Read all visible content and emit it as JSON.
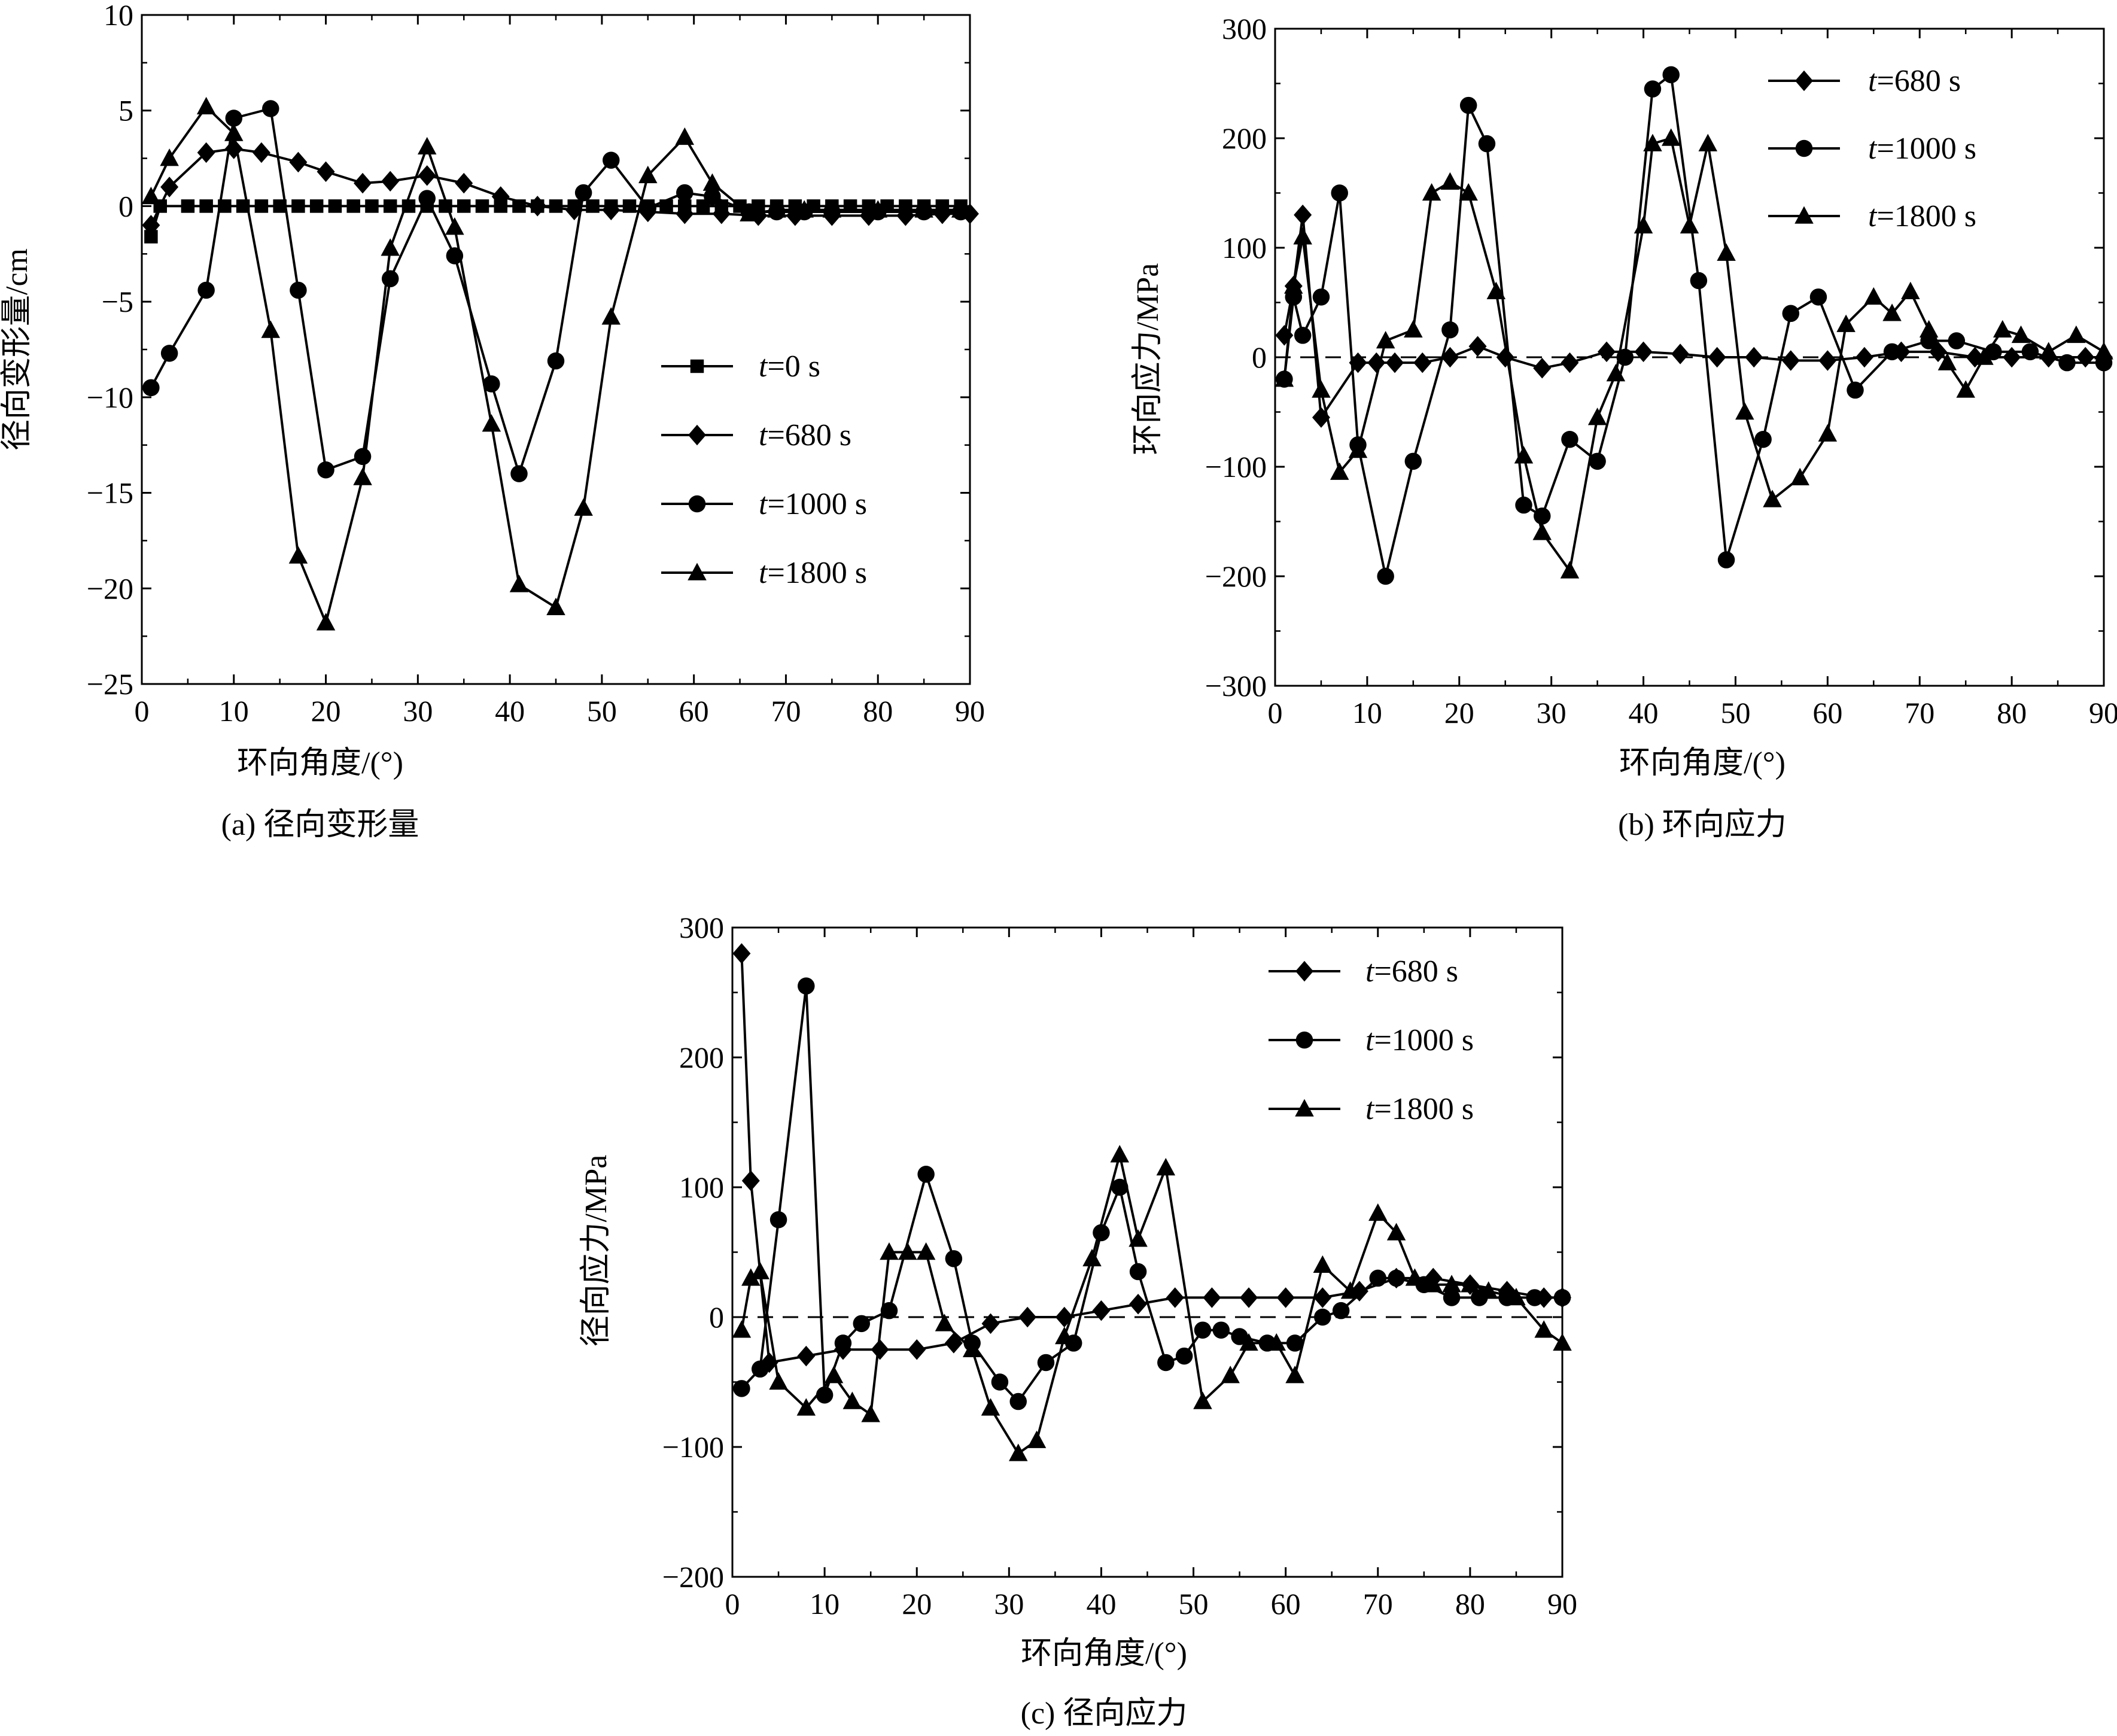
{
  "panels": [
    {
      "title": "环向角度/(°)",
      "caption": "(a) 径向变形量",
      "chart_data": {
        "type": "line",
        "title": "",
        "xlabel": "环向角度/(°)",
        "ylabel": "径向变形量/cm",
        "xlim": [
          0,
          90
        ],
        "ylim": [
          -25,
          10
        ],
        "xticks": [
          0,
          10,
          20,
          30,
          40,
          50,
          60,
          70,
          80,
          90
        ],
        "yticks": [
          10,
          5,
          0,
          -5,
          -10,
          -15,
          -20,
          -25
        ],
        "ytick_labels": [
          "10",
          "5",
          "0",
          "−5",
          "−10",
          "−15",
          "−20",
          "−25"
        ],
        "legend_position": "center-right",
        "series": [
          {
            "name_prefix": "t",
            "name_suffix": "=0 s",
            "marker": "square",
            "x": [
              1,
              2,
              5,
              7,
              9,
              11,
              13,
              15,
              17,
              19,
              21,
              23,
              25,
              27,
              29,
              31,
              33,
              35,
              37,
              39,
              41,
              43,
              45,
              47,
              49,
              51,
              53,
              55,
              57,
              59,
              61,
              63,
              65,
              67,
              69,
              71,
              73,
              75,
              77,
              79,
              81,
              83,
              85,
              87,
              89
            ],
            "y": [
              -1.6,
              0,
              0,
              0,
              0,
              0,
              0,
              0,
              0,
              0,
              0,
              0,
              0,
              0,
              0,
              0,
              0,
              0,
              0,
              0,
              0,
              0,
              0,
              0,
              0,
              0,
              0,
              0,
              0,
              0,
              0,
              0,
              0,
              0,
              0,
              0,
              0,
              0,
              0,
              0,
              0,
              0,
              0,
              0,
              0
            ]
          },
          {
            "name_prefix": "t",
            "name_suffix": "=680 s",
            "marker": "diamond",
            "x": [
              1,
              3,
              7,
              10,
              13,
              17,
              20,
              24,
              27,
              31,
              35,
              39,
              43,
              47,
              51,
              55,
              59,
              63,
              67,
              71,
              75,
              79,
              83,
              87,
              90
            ],
            "y": [
              -1,
              1,
              2.8,
              3,
              2.8,
              2.3,
              1.8,
              1.2,
              1.3,
              1.6,
              1.2,
              0.5,
              0,
              -0.2,
              -0.2,
              -0.3,
              -0.4,
              -0.4,
              -0.5,
              -0.5,
              -0.5,
              -0.5,
              -0.5,
              -0.4,
              -0.4
            ]
          },
          {
            "name_prefix": "t",
            "name_suffix": "=1000 s",
            "marker": "circle",
            "x": [
              1,
              3,
              7,
              10,
              14,
              17,
              20,
              24,
              27,
              31,
              34,
              38,
              41,
              45,
              48,
              51,
              55,
              59,
              62,
              66,
              69,
              72,
              75,
              80,
              85,
              89
            ],
            "y": [
              -9.5,
              -7.7,
              -4.4,
              4.6,
              5.1,
              -4.4,
              -13.8,
              -13.1,
              -3.8,
              0.4,
              -2.6,
              -9.3,
              -14,
              -8.1,
              0.7,
              2.4,
              -0.1,
              0.7,
              0.5,
              -0.3,
              -0.3,
              -0.3,
              -0.3,
              -0.3,
              -0.3,
              -0.3
            ]
          },
          {
            "name_prefix": "t",
            "name_suffix": "=1800 s",
            "marker": "triangle",
            "x": [
              1,
              3,
              7,
              10,
              14,
              17,
              20,
              24,
              27,
              31,
              34,
              38,
              41,
              45,
              48,
              51,
              55,
              59,
              62,
              66,
              69,
              72,
              75,
              80,
              85,
              89
            ],
            "y": [
              0.5,
              2.5,
              5.2,
              3.8,
              -6.5,
              -18.3,
              -21.8,
              -14.2,
              -2.2,
              3.1,
              -1.1,
              -11.4,
              -19.8,
              -21,
              -15.8,
              -5.8,
              1.6,
              3.6,
              1.2,
              -0.4,
              -0.2,
              -0.2,
              -0.2,
              -0.2,
              -0.2,
              -0.2
            ]
          }
        ]
      }
    },
    {
      "title": "环向角度/(°)",
      "caption": "(b) 环向应力",
      "chart_data": {
        "type": "line",
        "title": "",
        "xlabel": "环向角度/(°)",
        "ylabel": "环向应力/MPa",
        "xlim": [
          0,
          90
        ],
        "ylim": [
          -300,
          300
        ],
        "xticks": [
          0,
          10,
          20,
          30,
          40,
          50,
          60,
          70,
          80,
          90
        ],
        "yticks": [
          300,
          200,
          100,
          0,
          -100,
          -200,
          -300
        ],
        "ytick_labels": [
          "300",
          "200",
          "100",
          "0",
          "−100",
          "−200",
          "−300"
        ],
        "legend_position": "top-right",
        "zero_line": "dashed",
        "series": [
          {
            "name_prefix": "t",
            "name_suffix": "=680 s",
            "marker": "diamond",
            "x": [
              1,
              2,
              3,
              5,
              9,
              11,
              13,
              16,
              19,
              22,
              25,
              29,
              32,
              36,
              40,
              44,
              48,
              52,
              56,
              60,
              64,
              68,
              72,
              76,
              80,
              84,
              88,
              90
            ],
            "y": [
              20,
              65,
              130,
              -55,
              -5,
              -5,
              -5,
              -5,
              0,
              10,
              0,
              -10,
              -5,
              5,
              5,
              3,
              0,
              0,
              -3,
              -3,
              0,
              5,
              5,
              0,
              0,
              0,
              0,
              0
            ]
          },
          {
            "name_prefix": "t",
            "name_suffix": "=1000 s",
            "marker": "circle",
            "x": [
              1,
              2,
              3,
              5,
              7,
              9,
              12,
              15,
              19,
              21,
              23,
              27,
              29,
              32,
              35,
              38,
              41,
              43,
              46,
              49,
              53,
              56,
              59,
              63,
              67,
              71,
              74,
              78,
              82,
              86,
              90
            ],
            "y": [
              -20,
              55,
              20,
              55,
              150,
              -80,
              -200,
              -95,
              25,
              230,
              195,
              -135,
              -145,
              -75,
              -95,
              0,
              245,
              258,
              70,
              -185,
              -75,
              40,
              55,
              -30,
              5,
              15,
              15,
              5,
              5,
              -5,
              -5
            ]
          },
          {
            "name_prefix": "t",
            "name_suffix": "=1800 s",
            "marker": "triangle",
            "x": [
              1,
              2,
              3,
              5,
              7,
              9,
              12,
              15,
              17,
              19,
              21,
              24,
              27,
              29,
              32,
              35,
              37,
              40,
              41,
              43,
              45,
              47,
              49,
              51,
              54,
              57,
              60,
              62,
              65,
              67,
              69,
              71,
              73,
              75,
              77,
              79,
              81,
              84,
              87,
              90
            ],
            "y": [
              -20,
              65,
              110,
              -30,
              -105,
              -85,
              15,
              25,
              150,
              160,
              150,
              60,
              -90,
              -160,
              -195,
              -55,
              -15,
              120,
              195,
              200,
              120,
              195,
              95,
              -50,
              -130,
              -110,
              -70,
              30,
              55,
              40,
              60,
              25,
              -5,
              -30,
              0,
              25,
              20,
              5,
              20,
              5
            ]
          }
        ]
      }
    },
    {
      "title": "环向角度/(°)",
      "caption": "(c) 径向应力",
      "chart_data": {
        "type": "line",
        "title": "",
        "xlabel": "环向角度/(°)",
        "ylabel": "径向应力/MPa",
        "xlim": [
          0,
          90
        ],
        "ylim": [
          -200,
          300
        ],
        "xticks": [
          0,
          10,
          20,
          30,
          40,
          50,
          60,
          70,
          80,
          90
        ],
        "yticks": [
          300,
          200,
          100,
          0,
          -100,
          -200
        ],
        "ytick_labels": [
          "300",
          "200",
          "100",
          "0",
          "−100",
          "−200"
        ],
        "legend_position": "top-right",
        "zero_line": "dashed",
        "series": [
          {
            "name_prefix": "t",
            "name_suffix": "=680 s",
            "marker": "diamond",
            "x": [
              1,
              2,
              4,
              8,
              12,
              16,
              20,
              24,
              28,
              32,
              36,
              40,
              44,
              48,
              52,
              56,
              60,
              64,
              68,
              72,
              76,
              80,
              84,
              88,
              90
            ],
            "y": [
              280,
              105,
              -35,
              -30,
              -25,
              -25,
              -25,
              -20,
              -5,
              0,
              0,
              5,
              10,
              15,
              15,
              15,
              15,
              15,
              20,
              30,
              30,
              25,
              20,
              15,
              15
            ]
          },
          {
            "name_prefix": "t",
            "name_suffix": "=1000 s",
            "marker": "circle",
            "x": [
              1,
              3,
              5,
              8,
              10,
              12,
              14,
              17,
              21,
              24,
              26,
              29,
              31,
              34,
              37,
              40,
              42,
              44,
              47,
              49,
              51,
              53,
              55,
              58,
              61,
              64,
              66,
              70,
              72,
              75,
              78,
              81,
              84,
              87,
              90
            ],
            "y": [
              -55,
              -40,
              75,
              255,
              -60,
              -20,
              -5,
              5,
              110,
              45,
              -20,
              -50,
              -65,
              -35,
              -20,
              65,
              100,
              35,
              -35,
              -30,
              -10,
              -10,
              -15,
              -20,
              -20,
              0,
              5,
              30,
              30,
              25,
              15,
              15,
              15,
              15,
              15
            ]
          },
          {
            "name_prefix": "t",
            "name_suffix": "=1800 s",
            "marker": "triangle",
            "x": [
              1,
              2,
              3,
              5,
              8,
              11,
              13,
              15,
              17,
              19,
              21,
              23,
              26,
              28,
              31,
              33,
              36,
              39,
              42,
              44,
              47,
              51,
              54,
              56,
              59,
              61,
              64,
              67,
              70,
              72,
              74,
              76,
              78,
              80,
              82,
              85,
              88,
              90
            ],
            "y": [
              -10,
              30,
              35,
              -50,
              -70,
              -45,
              -65,
              -75,
              50,
              50,
              50,
              -5,
              -25,
              -70,
              -105,
              -95,
              -15,
              45,
              125,
              60,
              115,
              -65,
              -45,
              -20,
              -20,
              -45,
              40,
              20,
              80,
              65,
              30,
              25,
              25,
              25,
              20,
              15,
              -10,
              -20
            ]
          }
        ]
      }
    }
  ]
}
